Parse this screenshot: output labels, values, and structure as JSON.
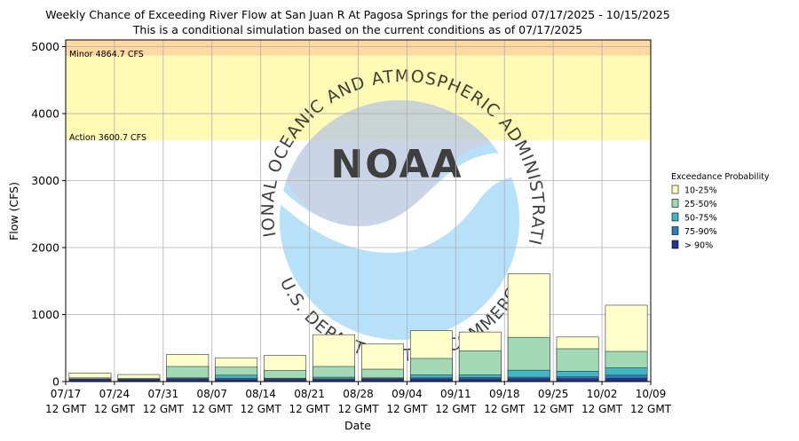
{
  "chart_data": {
    "type": "bar",
    "title": "Weekly Chance of Exceeding River Flow at San Juan R At Pagosa Springs for the period 07/17/2025 - 10/15/2025",
    "subtitle": "This is a conditional simulation based on the current conditions as of 07/17/2025",
    "xlabel": "Date",
    "ylabel": "Flow (CFS)",
    "ylim": [
      0,
      5100
    ],
    "yticks": [
      0,
      1000,
      2000,
      3000,
      4000,
      5000
    ],
    "xticks": [
      [
        "07/17",
        "12 GMT"
      ],
      [
        "07/24",
        "12 GMT"
      ],
      [
        "07/31",
        "12 GMT"
      ],
      [
        "08/07",
        "12 GMT"
      ],
      [
        "08/14",
        "12 GMT"
      ],
      [
        "08/21",
        "12 GMT"
      ],
      [
        "08/28",
        "12 GMT"
      ],
      [
        "09/04",
        "12 GMT"
      ],
      [
        "09/11",
        "12 GMT"
      ],
      [
        "09/18",
        "12 GMT"
      ],
      [
        "09/25",
        "12 GMT"
      ],
      [
        "10/02",
        "12 GMT"
      ],
      [
        "10/09",
        "12 GMT"
      ]
    ],
    "grid": true,
    "legend": {
      "title": "Exceedance Probability",
      "position": "right",
      "entries": [
        {
          "label": "10-25%",
          "color": "#ffffcc"
        },
        {
          "label": "25-50%",
          "color": "#a1dab4"
        },
        {
          "label": "50-75%",
          "color": "#41b6c4"
        },
        {
          "label": "75-90%",
          "color": "#2c7fb8"
        },
        {
          "label": "> 90%",
          "color": "#253494"
        }
      ]
    },
    "thresholds": [
      {
        "label": "Minor 4864.7 CFS",
        "value": 4864.7,
        "color": "#ffd9a0"
      },
      {
        "label": "Action 3600.7 CFS",
        "value": 3600.7,
        "color": "#fffab5"
      }
    ],
    "series": [
      {
        "name": "10-25%",
        "values": [
          125,
          105,
          405,
          355,
          390,
          700,
          560,
          760,
          740,
          1610,
          665,
          1140
        ]
      },
      {
        "name": "25-50%",
        "values": [
          55,
          50,
          225,
          215,
          165,
          225,
          185,
          345,
          460,
          660,
          490,
          450
        ]
      },
      {
        "name": "50-75%",
        "values": [
          40,
          35,
          55,
          95,
          50,
          65,
          55,
          100,
          100,
          170,
          155,
          205
        ]
      },
      {
        "name": "75-90%",
        "values": [
          35,
          30,
          45,
          50,
          40,
          40,
          45,
          55,
          60,
          65,
          70,
          95
        ]
      },
      {
        "name": "> 90%",
        "values": [
          30,
          25,
          35,
          30,
          30,
          30,
          35,
          40,
          40,
          45,
          45,
          50
        ]
      }
    ]
  },
  "watermark": {
    "logo_text": "NOAA",
    "ring_text": "NATIONAL OCEANIC AND ATMOSPHERIC ADMINISTRATION",
    "bottom_text": "U.S. DEPARTMENT OF COMMERCE"
  }
}
